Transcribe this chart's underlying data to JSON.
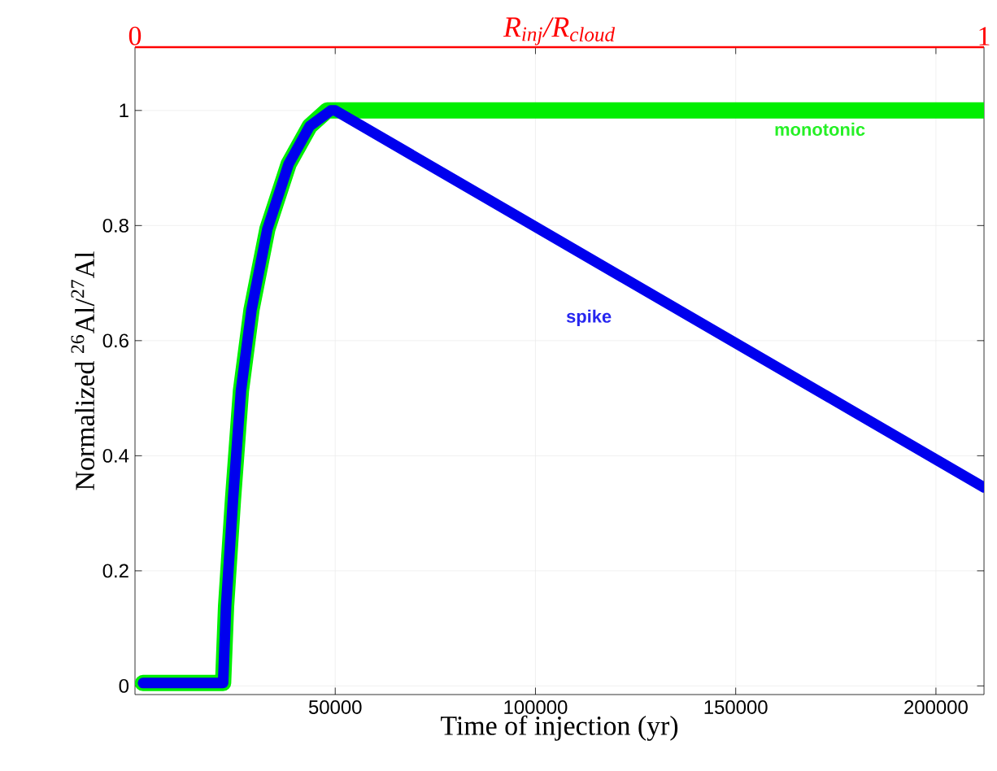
{
  "chart_data": {
    "type": "line",
    "xlabel": "Time of injection (yr)",
    "ylabel": "Normalized $^{26}$Al/$^{27}$Al",
    "x2label": "R$_{inj}$/R$_{cloud}$",
    "xlim": [
      0,
      212000
    ],
    "xticks": [
      50000,
      100000,
      150000,
      200000
    ],
    "ylim": [
      -0.015,
      1.11
    ],
    "yticks": [
      0,
      0.2,
      0.4,
      0.6,
      0.8,
      1
    ],
    "x2lim": [
      0,
      1
    ],
    "x2ticks": [
      0,
      1
    ],
    "grid": true,
    "legend": false,
    "marker": "none",
    "line_style": "solid",
    "series": [
      {
        "name": "monotonic",
        "color": "#00ee00",
        "x": [
          2000,
          22000,
          22740,
          24480,
          26460,
          29100,
          33060,
          38370,
          43650,
          48000,
          212000
        ],
        "values": [
          0.005,
          0.005,
          0.138,
          0.325,
          0.513,
          0.654,
          0.794,
          0.907,
          0.973,
          1.0,
          1.0
        ]
      },
      {
        "name": "spike",
        "color": "#0000ee",
        "x": [
          2000,
          22000,
          22740,
          24480,
          26460,
          29100,
          33060,
          38370,
          43650,
          48930,
          50000,
          212000
        ],
        "values": [
          0.005,
          0.005,
          0.138,
          0.325,
          0.513,
          0.654,
          0.794,
          0.907,
          0.973,
          1.0,
          1.0,
          0.345
        ]
      }
    ]
  }
}
